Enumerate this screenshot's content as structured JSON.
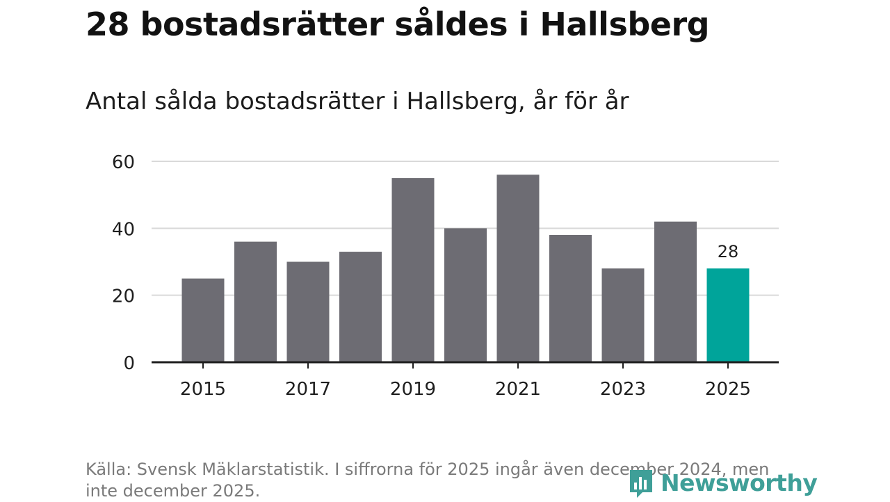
{
  "header": {
    "title": "28 bostadsrätter såldes i Hallsberg",
    "subtitle": "Antal sålda bostadsrätter i Hallsberg, år för år"
  },
  "colors": {
    "bar": "#6d6c73",
    "highlight": "#00a49a",
    "grid": "#d9d9d9",
    "axis": "#1e1e1e",
    "text": "#1e1e1e"
  },
  "chart_data": {
    "type": "bar",
    "title": "Antal sålda bostadsrätter i Hallsberg, år för år",
    "xlabel": "",
    "ylabel": "",
    "categories": [
      "2015",
      "2016",
      "2017",
      "2018",
      "2019",
      "2020",
      "2021",
      "2022",
      "2023",
      "2024",
      "2025"
    ],
    "values": [
      25,
      36,
      30,
      33,
      55,
      40,
      56,
      38,
      28,
      42,
      28
    ],
    "highlight_index": 10,
    "data_labels": [
      {
        "index": 10,
        "text": "28"
      }
    ],
    "x_tick_labels": [
      "2015",
      "2017",
      "2019",
      "2021",
      "2023",
      "2025"
    ],
    "y_ticks": [
      0,
      20,
      40,
      60
    ],
    "y_tick_labels": [
      "0",
      "20",
      "40",
      "60"
    ],
    "ylim": [
      0,
      60
    ],
    "grid": true,
    "legend": "none"
  },
  "footer": {
    "source": "Källa: Svensk Mäklarstatistik. I siffrorna för 2025 ingår även december 2024, men inte december 2025.",
    "logo_text": "Newsworthy"
  }
}
